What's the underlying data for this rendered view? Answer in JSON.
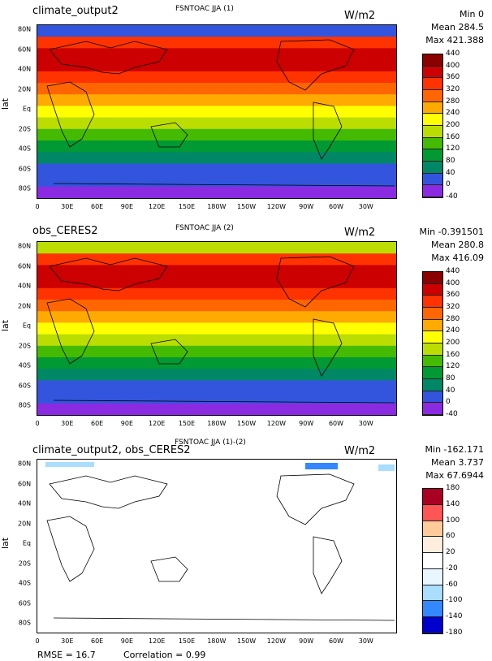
{
  "panels": [
    {
      "case": "climate_output2",
      "title": "FSNTOAC JJA (1)",
      "units": "W/m2",
      "stats": [
        "Min 0",
        "Mean 284.5",
        "Max 421.388"
      ],
      "legend": [
        "440",
        "400",
        "360",
        "320",
        "280",
        "240",
        "200",
        "160",
        "120",
        "80",
        "40",
        "0",
        "-40"
      ],
      "colors": [
        "#8b0000",
        "#cc0000",
        "#ff3300",
        "#ff6600",
        "#ffaa00",
        "#ffff00",
        "#bbdd00",
        "#44bb00",
        "#009933",
        "#008866",
        "#3355dd",
        "#8a2be2"
      ]
    },
    {
      "case": "obs_CERES2",
      "title": "FSNTOAC JJA (2)",
      "units": "W/m2",
      "stats": [
        "Min -0.391501",
        "Mean 280.8",
        "Max 416.09"
      ],
      "legend": [
        "440",
        "400",
        "360",
        "320",
        "280",
        "240",
        "200",
        "160",
        "120",
        "80",
        "40",
        "0",
        "-40"
      ],
      "colors": [
        "#8b0000",
        "#cc0000",
        "#ff3300",
        "#ff6600",
        "#ffaa00",
        "#ffff00",
        "#bbdd00",
        "#44bb00",
        "#009933",
        "#008866",
        "#3355dd",
        "#8a2be2"
      ]
    },
    {
      "case": "climate_output2, obs_CERES2",
      "title": "FSNTOAC JJA (1)-(2)",
      "units": "W/m2",
      "stats": [
        "Min -162.171",
        "Mean 3.737",
        "Max 67.6944"
      ],
      "legend": [
        "180",
        "140",
        "100",
        "60",
        "20",
        "-20",
        "-60",
        "-100",
        "-140",
        "-180"
      ],
      "colors": [
        "#aa0022",
        "#ff5555",
        "#ffcc99",
        "#ffeedd",
        "#ffffff",
        "#e8f6ff",
        "#aaddff",
        "#3388ff",
        "#0000cc"
      ]
    }
  ],
  "axis": {
    "ylabel": "lat",
    "lat_ticks": [
      "80N",
      "60N",
      "40N",
      "20N",
      "Eq",
      "20S",
      "40S",
      "60S",
      "80S"
    ],
    "lon_ticks": [
      "0",
      "30E",
      "60E",
      "90E",
      "120E",
      "150E",
      "180W",
      "150W",
      "120W",
      "90W",
      "60W",
      "30W"
    ]
  },
  "footer": {
    "rmse": "RMSE = 16.7",
    "correlation": "Correlation = 0.99"
  }
}
